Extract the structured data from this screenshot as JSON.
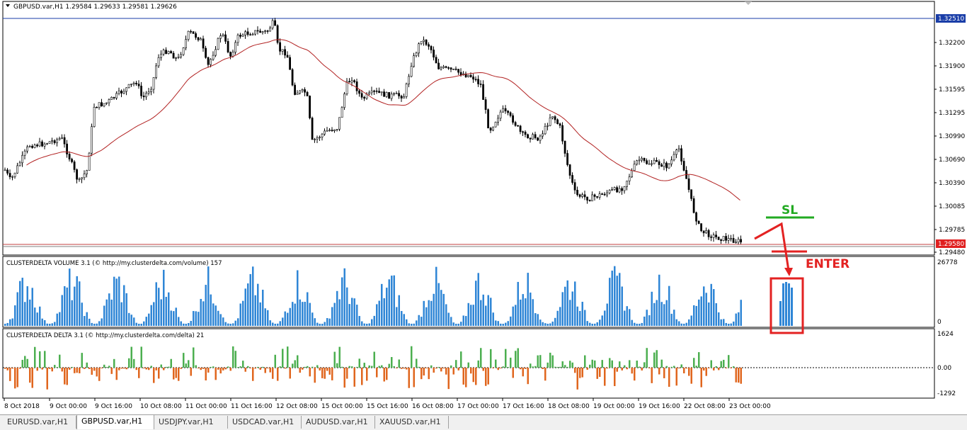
{
  "window": {
    "symbol_info": "GBPUSD.var,H1  1.29584 1.29633 1.29581 1.29626"
  },
  "price_scale": {
    "labels": [
      "1.32200",
      "1.31900",
      "1.31595",
      "1.31295",
      "1.30990",
      "1.30690",
      "1.30390",
      "1.30085",
      "1.29785",
      "1.29480"
    ],
    "highlight_high": "1.32510",
    "current_price": "1.29580"
  },
  "volume_panel": {
    "title": "CLUSTERDELTA VOLUME 3.1 (© http://my.clusterdelta.com/volume) 157",
    "max_label": "26778",
    "min_label": "0"
  },
  "delta_panel": {
    "title": "CLUSTERDELTA DELTA 3.1 (© http://my.clusterdelta.com/delta) 21",
    "max_label": "1624",
    "zero_label": "0.00",
    "min_label": "-1292"
  },
  "time_axis": [
    "8 Oct 2018",
    "9 Oct 00:00",
    "9 Oct 16:00",
    "10 Oct 08:00",
    "11 Oct 00:00",
    "11 Oct 16:00",
    "12 Oct 08:00",
    "15 Oct 00:00",
    "15 Oct 16:00",
    "16 Oct 08:00",
    "17 Oct 00:00",
    "17 Oct 16:00",
    "18 Oct 08:00",
    "19 Oct 00:00",
    "19 Oct 16:00",
    "22 Oct 08:00",
    "23 Oct 00:00"
  ],
  "annotations": {
    "sl_label": "SL",
    "enter_label": "ENTER"
  },
  "tabs": [
    {
      "label": "EURUSD.var,H1",
      "active": false
    },
    {
      "label": "GBPUSD.var,H1",
      "active": true
    },
    {
      "label": "USDJPY.var,H1",
      "active": false
    },
    {
      "label": "USDCAD.var,H1",
      "active": false
    },
    {
      "label": "AUDUSD.var,H1",
      "active": false
    },
    {
      "label": "XAUUSD.var,H1",
      "active": false
    }
  ],
  "colors": {
    "bull_candle": "#ffffff",
    "bear_candle": "#000000",
    "moving_average": "#b22222",
    "volume_bar": "#2f86d6",
    "delta_positive": "#4caf50",
    "delta_negative": "#e0661e",
    "annotation_red": "#e32222",
    "annotation_green": "#22aa22",
    "price_badge_red": "#e02020",
    "price_badge_blue": "#1a3ea8"
  }
}
